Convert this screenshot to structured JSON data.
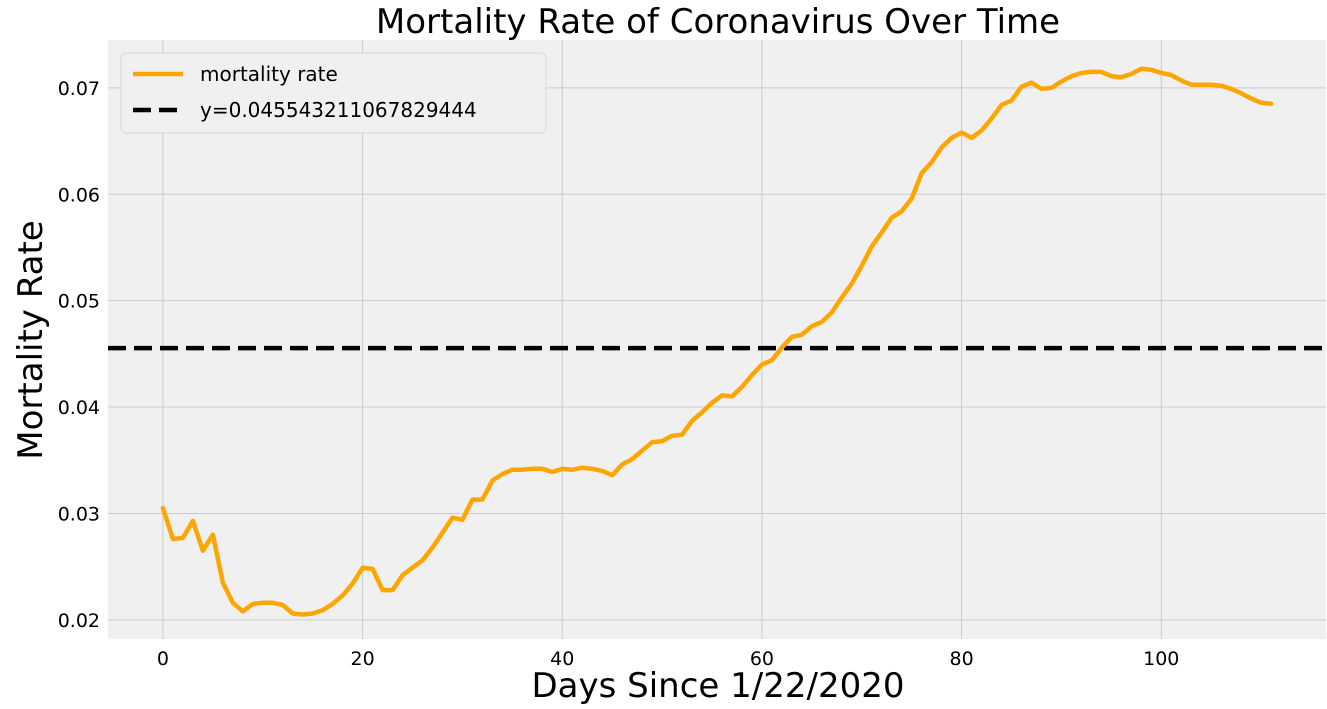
{
  "chart_data": {
    "type": "line",
    "title": "Mortality Rate of Coronavirus Over Time",
    "xlabel": "Days Since 1/22/2020",
    "ylabel": "Mortality Rate",
    "xlim": [
      -5.5,
      116.5
    ],
    "ylim": [
      0.0182,
      0.0745
    ],
    "xticks": [
      0,
      20,
      40,
      60,
      80,
      100
    ],
    "yticks": [
      0.02,
      0.03,
      0.04,
      0.05,
      0.06,
      0.07
    ],
    "grid": true,
    "legend": "top-left",
    "series": [
      {
        "name": "mortality rate",
        "color": "#ffa500",
        "style": "solid",
        "x": [
          0,
          1,
          2,
          3,
          4,
          5,
          6,
          7,
          8,
          9,
          10,
          11,
          12,
          13,
          14,
          15,
          16,
          17,
          18,
          19,
          20,
          21,
          22,
          23,
          24,
          25,
          26,
          27,
          28,
          29,
          30,
          31,
          32,
          33,
          34,
          35,
          36,
          37,
          38,
          39,
          40,
          41,
          42,
          43,
          44,
          45,
          46,
          47,
          48,
          49,
          50,
          51,
          52,
          53,
          54,
          55,
          56,
          57,
          58,
          59,
          60,
          61,
          62,
          63,
          64,
          65,
          66,
          67,
          68,
          69,
          70,
          71,
          72,
          73,
          74,
          75,
          76,
          77,
          78,
          79,
          80,
          81,
          82,
          83,
          84,
          85,
          86,
          87,
          88,
          89,
          90,
          91,
          92,
          93,
          94,
          95,
          96,
          97,
          98,
          99,
          100,
          101,
          102,
          103,
          104,
          105,
          106,
          107,
          108,
          109,
          110,
          111
        ],
        "values": [
          0.0305,
          0.0276,
          0.0277,
          0.0293,
          0.0265,
          0.028,
          0.0235,
          0.0216,
          0.0208,
          0.0215,
          0.0216,
          0.0216,
          0.0214,
          0.0206,
          0.0205,
          0.0206,
          0.0209,
          0.0215,
          0.0223,
          0.0234,
          0.0249,
          0.0248,
          0.0228,
          0.0228,
          0.0242,
          0.0249,
          0.0256,
          0.0268,
          0.0282,
          0.0296,
          0.0294,
          0.0313,
          0.0313,
          0.0331,
          0.0337,
          0.0341,
          0.0341,
          0.0342,
          0.0342,
          0.0339,
          0.0342,
          0.0341,
          0.0343,
          0.0342,
          0.034,
          0.0336,
          0.0346,
          0.0351,
          0.0359,
          0.0367,
          0.0368,
          0.0373,
          0.0374,
          0.0387,
          0.0395,
          0.0404,
          0.0411,
          0.041,
          0.0419,
          0.043,
          0.044,
          0.0444,
          0.0456,
          0.0466,
          0.0468,
          0.0476,
          0.048,
          0.0489,
          0.0503,
          0.0516,
          0.0533,
          0.0551,
          0.0564,
          0.0578,
          0.0584,
          0.0596,
          0.062,
          0.063,
          0.0644,
          0.0653,
          0.0658,
          0.0653,
          0.066,
          0.0671,
          0.0684,
          0.0688,
          0.0701,
          0.0705,
          0.0699,
          0.07,
          0.0706,
          0.0711,
          0.0714,
          0.0715,
          0.0715,
          0.0711,
          0.071,
          0.0713,
          0.0718,
          0.0717,
          0.0714,
          0.0712,
          0.0707,
          0.0703,
          0.0703,
          0.0703,
          0.0702,
          0.0699,
          0.0695,
          0.069,
          0.0686,
          0.0685
        ]
      },
      {
        "name": "y=0.045543211067829444",
        "color": "#000000",
        "style": "dashed",
        "y": 0.045543211067829444
      }
    ]
  }
}
